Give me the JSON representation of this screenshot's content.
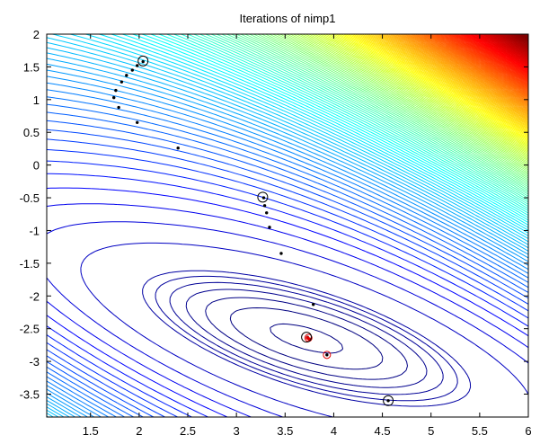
{
  "chart_data": {
    "type": "contour",
    "title": "Iterations of nimp1",
    "xlim": [
      1.05,
      6
    ],
    "ylim": [
      -3.85,
      2
    ],
    "xticks": [
      1.5,
      2,
      2.5,
      3,
      3.5,
      4,
      4.5,
      5,
      5.5,
      6
    ],
    "yticks": [
      2,
      1.5,
      1,
      0.5,
      0,
      -0.5,
      -1,
      -1.5,
      -2,
      -2.5,
      -3,
      -3.5
    ],
    "xtick_labels": [
      "1.5",
      "2",
      "2.5",
      "3",
      "3.5",
      "4",
      "4.5",
      "5",
      "5.5",
      "6"
    ],
    "ytick_labels": [
      "2",
      "1.5",
      "1",
      "0.5",
      "0",
      "-0.5",
      "-1",
      "-1.5",
      "-2",
      "-2.5",
      "-3",
      "-3.5"
    ],
    "contour_minimum": [
      3.72,
      -2.65
    ],
    "colormap": "jet",
    "grid": false,
    "iteration_points": [
      [
        2.04,
        1.58
      ],
      [
        1.98,
        1.52
      ],
      [
        1.93,
        1.45
      ],
      [
        1.87,
        1.37
      ],
      [
        1.82,
        1.27
      ],
      [
        1.76,
        1.14
      ],
      [
        1.74,
        1.03
      ],
      [
        1.79,
        0.88
      ],
      [
        1.98,
        0.65
      ],
      [
        2.4,
        0.26
      ],
      [
        3.28,
        -0.5
      ],
      [
        3.29,
        -0.62
      ],
      [
        3.31,
        -0.73
      ],
      [
        3.34,
        -0.95
      ],
      [
        3.46,
        -1.35
      ],
      [
        3.79,
        -2.13
      ],
      [
        3.73,
        -2.63
      ],
      [
        3.93,
        -2.9
      ],
      [
        4.56,
        -3.6
      ]
    ],
    "circled_points": [
      [
        2.04,
        1.59
      ],
      [
        3.27,
        -0.49
      ],
      [
        3.72,
        -2.63
      ],
      [
        4.56,
        -3.6
      ]
    ],
    "red_circled_points": [
      [
        3.74,
        -2.64
      ],
      [
        3.93,
        -2.9
      ]
    ],
    "red_markers": [
      [
        3.73,
        -2.64
      ],
      [
        3.75,
        -2.66
      ]
    ]
  }
}
